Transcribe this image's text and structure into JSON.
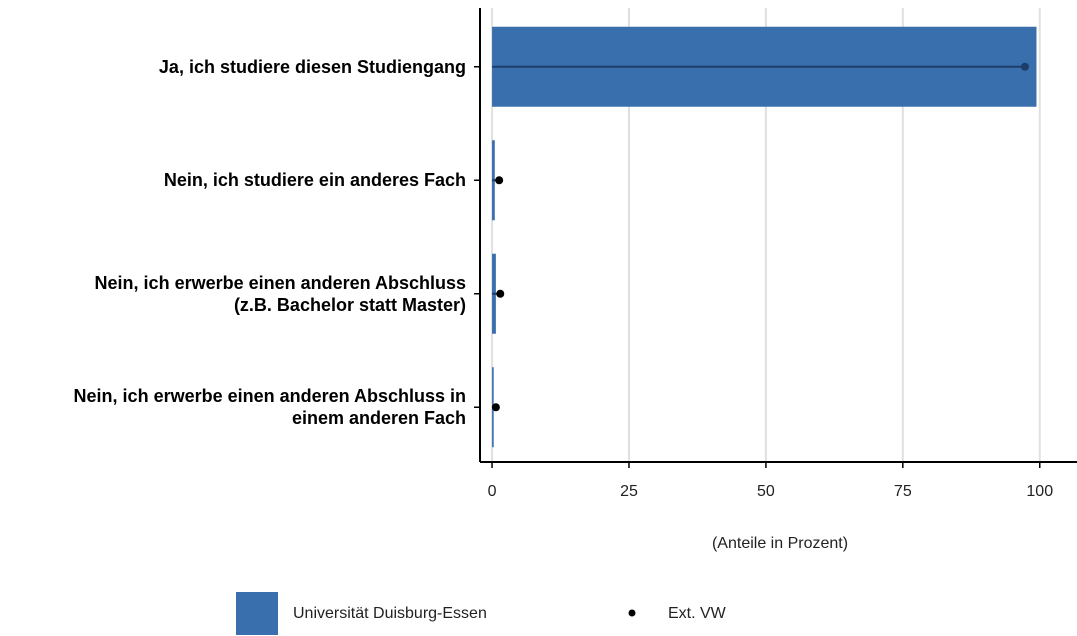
{
  "chart_data": {
    "type": "bar_dot",
    "categories": [
      "Ja, ich studiere diesen Studiengang",
      "Nein, ich studiere ein anderes Fach",
      "Nein, ich erwerbe einen anderen Abschluss\n(z.B. Bachelor statt Master)",
      "Nein, ich erwerbe einen anderen Abschluss in\neinem anderen Fach"
    ],
    "series": [
      {
        "name": "Universität Duisburg-Essen",
        "color": "#3a6fad",
        "values": [
          99.4,
          0.5,
          0.7,
          0.3
        ]
      },
      {
        "name": "Ext. VW",
        "color": "#000000",
        "values": [
          97.3,
          1.3,
          1.5,
          0.7
        ]
      }
    ],
    "xlabel": "(Anteile in Prozent)",
    "xlim": [
      -2.2,
      106.8
    ],
    "xticks": [
      0,
      25,
      50,
      75,
      100
    ],
    "grid": true
  }
}
